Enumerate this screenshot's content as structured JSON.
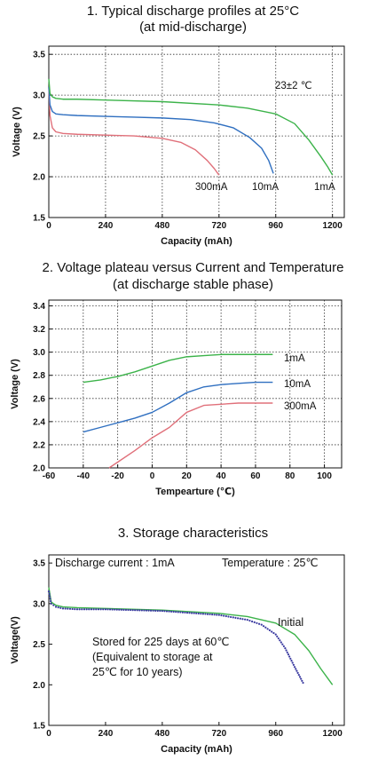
{
  "chart_data": [
    {
      "type": "line",
      "title": "1. Typical discharge profiles at 25°C",
      "subtitle": "(at mid-discharge)",
      "xlabel": "Capacity  (mAh)",
      "ylabel": "Voltage (V)",
      "xlim": [
        0,
        1250
      ],
      "ylim": [
        1.5,
        3.6
      ],
      "xticks": [
        "0",
        "240",
        "480",
        "720",
        "960",
        "1200"
      ],
      "xtick_values": [
        0,
        240,
        480,
        720,
        960,
        1200
      ],
      "yticks": [
        "1.5",
        "2.0",
        "2.5",
        "3.0",
        "3.5"
      ],
      "ytick_values": [
        1.5,
        2.0,
        2.5,
        3.0,
        3.5
      ],
      "grid": true,
      "annotation": "23±2 ℃",
      "series": [
        {
          "name": "300mA",
          "color": "#e0707a",
          "x": [
            0,
            5,
            15,
            30,
            60,
            120,
            240,
            360,
            480,
            560,
            620,
            670,
            700,
            720
          ],
          "y": [
            3.1,
            2.75,
            2.6,
            2.55,
            2.53,
            2.52,
            2.51,
            2.5,
            2.47,
            2.42,
            2.33,
            2.2,
            2.1,
            2.02
          ]
        },
        {
          "name": "10mA",
          "color": "#2f6fc0",
          "x": [
            0,
            5,
            15,
            30,
            60,
            120,
            240,
            360,
            480,
            600,
            700,
            780,
            850,
            900,
            930,
            950
          ],
          "y": [
            3.1,
            2.88,
            2.8,
            2.77,
            2.76,
            2.75,
            2.74,
            2.73,
            2.72,
            2.7,
            2.66,
            2.6,
            2.48,
            2.35,
            2.2,
            2.04
          ]
        },
        {
          "name": "1mA",
          "color": "#3cb34a",
          "x": [
            0,
            5,
            15,
            30,
            60,
            120,
            240,
            480,
            720,
            840,
            960,
            1040,
            1100,
            1150,
            1180,
            1200
          ],
          "y": [
            3.2,
            3.02,
            2.98,
            2.96,
            2.95,
            2.95,
            2.94,
            2.92,
            2.88,
            2.84,
            2.77,
            2.65,
            2.45,
            2.25,
            2.12,
            2.02
          ]
        }
      ],
      "series_labels": [
        "300mA",
        "10mA",
        "1mA"
      ]
    },
    {
      "type": "line",
      "title": "2. Voltage plateau versus Current and Temperature",
      "subtitle": "(at discharge stable phase)",
      "xlabel": "Tempearture  (℃)",
      "ylabel": "Voltage  (V)",
      "xlim": [
        -60,
        110
      ],
      "ylim": [
        2.0,
        3.45
      ],
      "xticks": [
        "-60",
        "-40",
        "-20",
        "0",
        "20",
        "40",
        "60",
        "80",
        "100"
      ],
      "xtick_values": [
        -60,
        -40,
        -20,
        0,
        20,
        40,
        60,
        80,
        100
      ],
      "yticks": [
        "2.0",
        "2.2",
        "2.4",
        "2.6",
        "2.8",
        "3.0",
        "3.2",
        "3.4"
      ],
      "ytick_values": [
        2.0,
        2.2,
        2.4,
        2.6,
        2.8,
        3.0,
        3.2,
        3.4
      ],
      "grid": true,
      "series": [
        {
          "name": "1mA",
          "color": "#3cb34a",
          "x": [
            -40,
            -30,
            -20,
            -10,
            0,
            10,
            20,
            30,
            40,
            50,
            60,
            70
          ],
          "y": [
            2.74,
            2.76,
            2.79,
            2.83,
            2.88,
            2.93,
            2.96,
            2.97,
            2.98,
            2.98,
            2.98,
            2.98
          ]
        },
        {
          "name": "10mA",
          "color": "#2f6fc0",
          "x": [
            -40,
            -30,
            -20,
            -10,
            0,
            10,
            20,
            30,
            40,
            50,
            60,
            70
          ],
          "y": [
            2.31,
            2.35,
            2.39,
            2.43,
            2.48,
            2.56,
            2.65,
            2.7,
            2.72,
            2.73,
            2.74,
            2.74
          ]
        },
        {
          "name": "300mA",
          "color": "#e0707a",
          "x": [
            -25,
            -20,
            -10,
            0,
            10,
            20,
            30,
            40,
            50,
            60,
            70
          ],
          "y": [
            2.0,
            2.05,
            2.15,
            2.26,
            2.35,
            2.48,
            2.54,
            2.55,
            2.56,
            2.56,
            2.56
          ]
        }
      ],
      "series_labels": [
        "1mA",
        "10mA",
        "300mA"
      ]
    },
    {
      "type": "line",
      "title": "3. Storage characteristics",
      "xlabel": "Capacity  (mAh)",
      "ylabel": "Voltage(V)",
      "xlim": [
        0,
        1250
      ],
      "ylim": [
        1.5,
        3.6
      ],
      "xticks": [
        "0",
        "240",
        "480",
        "720",
        "960",
        "1200"
      ],
      "xtick_values": [
        0,
        240,
        480,
        720,
        960,
        1200
      ],
      "yticks": [
        "1.5",
        "2.0",
        "2.5",
        "3.0",
        "3.5"
      ],
      "ytick_values": [
        1.5,
        2.0,
        2.5,
        3.0,
        3.5
      ],
      "grid": false,
      "annotations": [
        "Discharge current : 1mA",
        "Temperature : 25℃"
      ],
      "series": [
        {
          "name": "Initial",
          "color": "#3cb34a",
          "style": "solid",
          "x": [
            0,
            10,
            30,
            60,
            120,
            240,
            480,
            720,
            840,
            960,
            1040,
            1100,
            1150,
            1200
          ],
          "y": [
            3.2,
            3.02,
            2.98,
            2.96,
            2.95,
            2.94,
            2.92,
            2.88,
            2.84,
            2.76,
            2.62,
            2.42,
            2.2,
            2.0
          ]
        },
        {
          "name": "Stored for 225 days at 60℃",
          "color": "#3a3aa0",
          "style": "dotted",
          "x": [
            0,
            10,
            30,
            60,
            120,
            240,
            480,
            720,
            840,
            900,
            960,
            1000,
            1040,
            1080
          ],
          "y": [
            3.15,
            3.0,
            2.96,
            2.94,
            2.93,
            2.93,
            2.91,
            2.86,
            2.8,
            2.74,
            2.62,
            2.45,
            2.22,
            2.0
          ]
        }
      ],
      "series_labels": [
        "Initial"
      ],
      "stored_label_lines": [
        "Stored for 225 days at 60℃",
        "(Equivalent to storage at",
        "25℃ for 10 years)"
      ]
    }
  ]
}
